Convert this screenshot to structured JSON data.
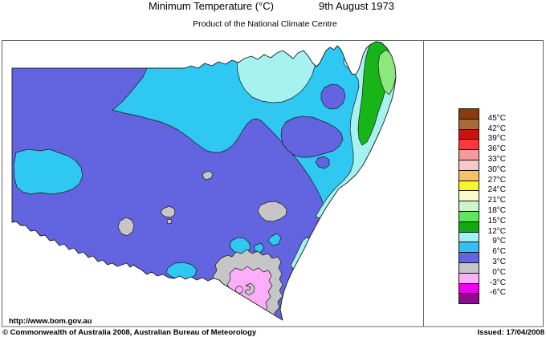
{
  "header": {
    "title": "Minimum Temperature (°C)",
    "date": "9th August 1973",
    "subtitle": "Product of the National Climate Centre"
  },
  "footer": {
    "url": "http://www.bom.gov.au",
    "copyright": "© Commonwealth of Australia 2008, Australian Bureau of Meteorology",
    "issued": "Issued: 17/04/2008"
  },
  "legend": {
    "labels": [
      "45°C",
      "42°C",
      "39°C",
      "36°C",
      "33°C",
      "30°C",
      "27°C",
      "24°C",
      "21°C",
      "18°C",
      "15°C",
      "12°C",
      "9°C",
      "6°C",
      "3°C",
      "0°C",
      "-3°C",
      "-6°C"
    ],
    "colors": [
      "#8B3A0E",
      "#A96B3C",
      "#CE1212",
      "#FA3A3A",
      "#F69B9B",
      "#F8C8C8",
      "#FAC162",
      "#F6F62B",
      "#FAFACA",
      "#CCF5C8",
      "#5FE65F",
      "#12A912",
      "#A0F2F2",
      "#38BEEE",
      "#6364E0",
      "#C6C6C6",
      "#FBAEFB",
      "#EE00EE",
      "#900A90"
    ]
  },
  "map": {
    "region": "New South Wales",
    "colors": {
      "base": "#6364E0",
      "cyan": "#2FC8F2",
      "light_cyan": "#A5F2F0",
      "green": "#17B517",
      "light_green": "#8CE87C",
      "gray": "#C6C6C6",
      "pink": "#FCAEFC"
    }
  }
}
